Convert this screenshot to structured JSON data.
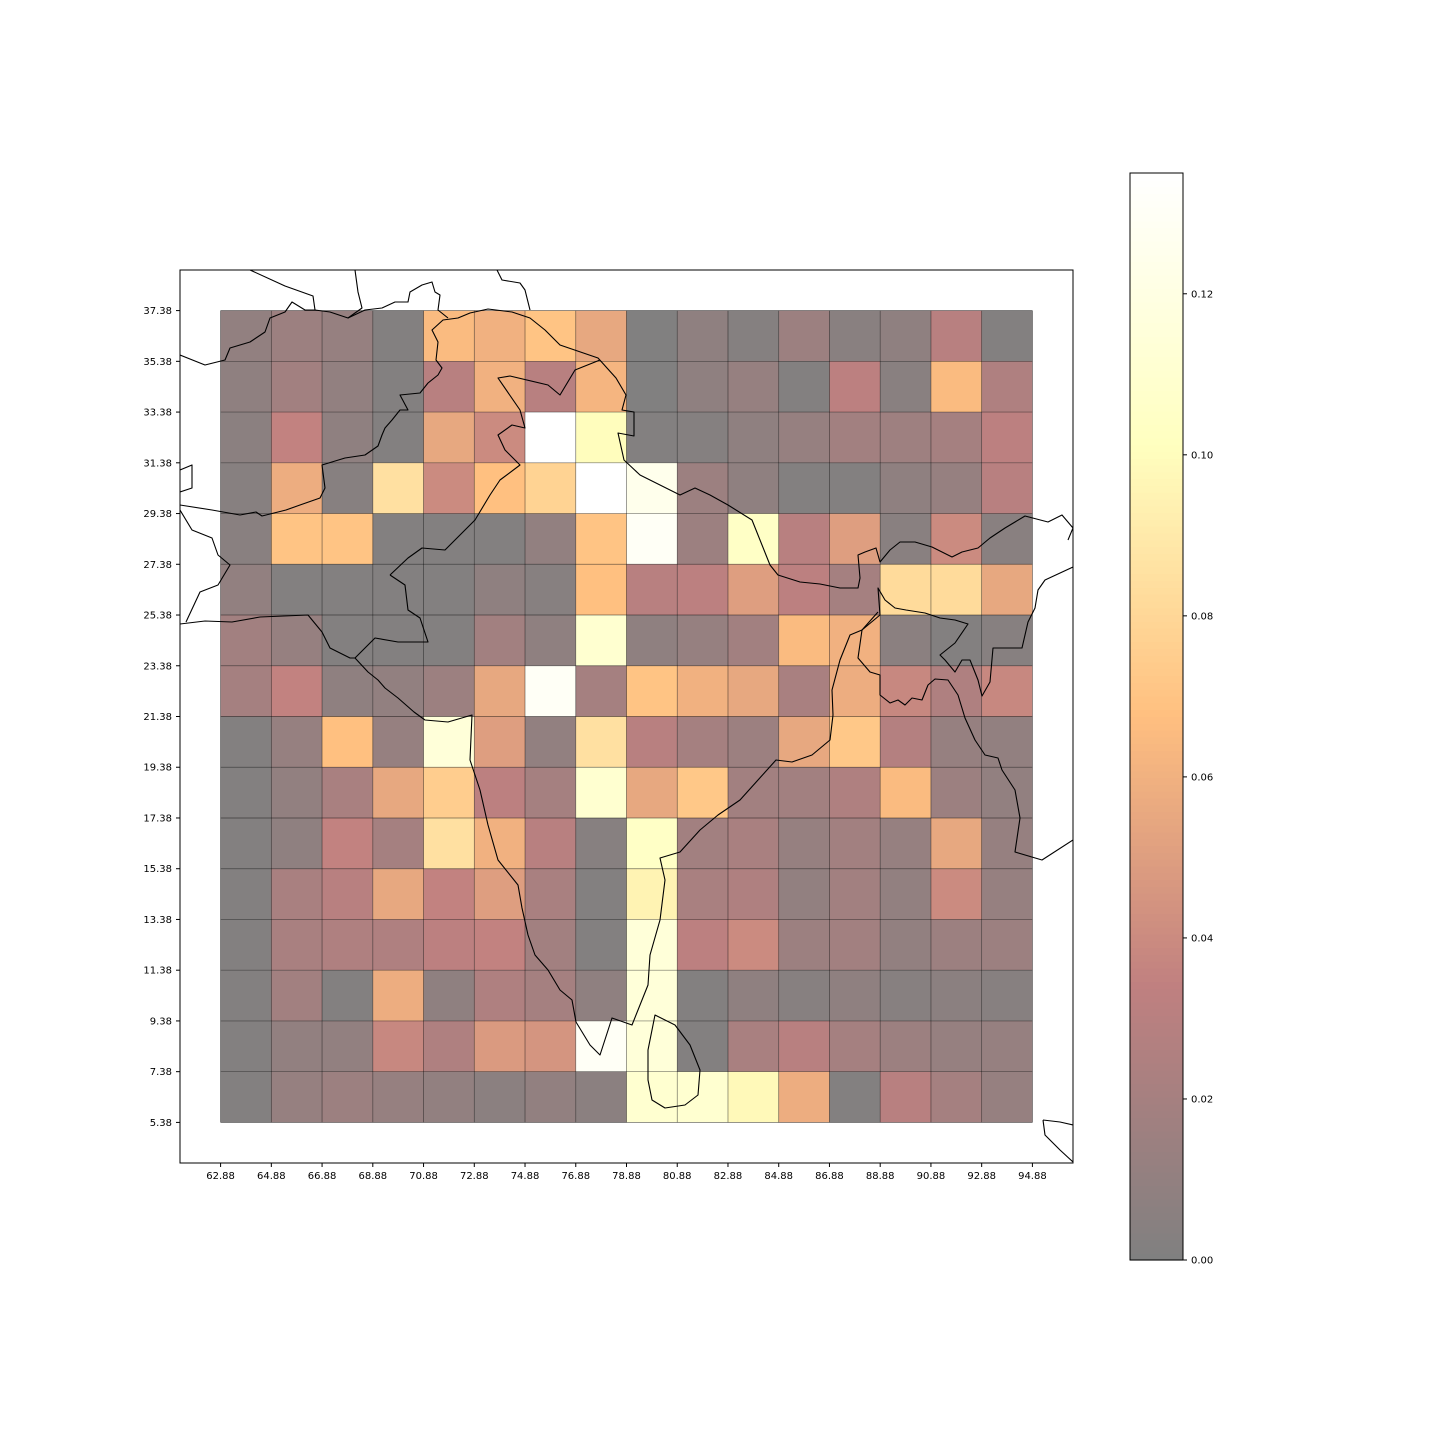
{
  "chart_data": {
    "type": "heatmap",
    "title": "",
    "xlabel": "",
    "ylabel": "",
    "x_ticks": [
      "62.88",
      "64.88",
      "66.88",
      "68.88",
      "70.88",
      "72.88",
      "74.88",
      "76.88",
      "78.88",
      "80.88",
      "82.88",
      "84.88",
      "86.88",
      "88.88",
      "90.88",
      "92.88",
      "94.88"
    ],
    "y_ticks": [
      "37.38",
      "35.38",
      "33.38",
      "31.38",
      "29.38",
      "27.38",
      "25.38",
      "23.38",
      "21.38",
      "19.38",
      "17.38",
      "15.38",
      "13.38",
      "11.38",
      "9.38",
      "7.38",
      "5.38"
    ],
    "xlim": [
      61.28,
      96.48
    ],
    "ylim": [
      3.78,
      38.98
    ],
    "cell_size_deg": 2,
    "grid_origin": {
      "lon": 62.88,
      "lat_top": 37.38
    },
    "colormap": "afmhot",
    "alpha": 0.5,
    "colorbar": {
      "min": 0.0,
      "max": 0.135,
      "ticks": [
        "0.00",
        "0.02",
        "0.04",
        "0.06",
        "0.08",
        "0.10",
        "0.12"
      ],
      "placement": "right"
    },
    "values_rows_north_to_south": [
      [
        0.01,
        0.015,
        0.012,
        0.002,
        0.065,
        0.06,
        0.07,
        0.055,
        0.001,
        0.008,
        0.003,
        0.015,
        0.005,
        0.008,
        0.03,
        0.002
      ],
      [
        0.008,
        0.018,
        0.01,
        0.002,
        0.03,
        0.06,
        0.03,
        0.062,
        0.001,
        0.008,
        0.012,
        0.002,
        0.032,
        0.005,
        0.065,
        0.025
      ],
      [
        0.006,
        0.035,
        0.008,
        0.002,
        0.055,
        0.04,
        0.135,
        0.1,
        0.002,
        0.003,
        0.008,
        0.012,
        0.018,
        0.016,
        0.02,
        0.032
      ],
      [
        0.004,
        0.058,
        0.004,
        0.085,
        0.04,
        0.068,
        0.078,
        0.14,
        0.125,
        0.015,
        0.008,
        0.002,
        0.002,
        0.008,
        0.012,
        0.03
      ],
      [
        0.005,
        0.07,
        0.07,
        0.002,
        0.002,
        0.002,
        0.01,
        0.07,
        0.13,
        0.015,
        0.105,
        0.03,
        0.05,
        0.005,
        0.04,
        0.005
      ],
      [
        0.01,
        0.002,
        0.002,
        0.002,
        0.002,
        0.008,
        0.004,
        0.068,
        0.03,
        0.032,
        0.05,
        0.032,
        0.02,
        0.082,
        0.082,
        0.055
      ],
      [
        0.018,
        0.012,
        0.002,
        0.002,
        0.002,
        0.018,
        0.008,
        0.11,
        0.008,
        0.012,
        0.018,
        0.065,
        0.06,
        0.006,
        0.002,
        0.004
      ],
      [
        0.02,
        0.035,
        0.008,
        0.01,
        0.015,
        0.055,
        0.13,
        0.02,
        0.07,
        0.06,
        0.055,
        0.022,
        0.058,
        0.038,
        0.025,
        0.038
      ],
      [
        0.002,
        0.012,
        0.068,
        0.012,
        0.115,
        0.05,
        0.01,
        0.085,
        0.03,
        0.02,
        0.015,
        0.055,
        0.072,
        0.028,
        0.012,
        0.01
      ],
      [
        0.002,
        0.01,
        0.022,
        0.055,
        0.075,
        0.032,
        0.02,
        0.11,
        0.055,
        0.072,
        0.018,
        0.018,
        0.025,
        0.065,
        0.015,
        0.01
      ],
      [
        0.002,
        0.008,
        0.035,
        0.02,
        0.085,
        0.06,
        0.03,
        0.004,
        0.105,
        0.018,
        0.022,
        0.012,
        0.018,
        0.012,
        0.055,
        0.012
      ],
      [
        0.002,
        0.022,
        0.03,
        0.055,
        0.035,
        0.05,
        0.022,
        0.002,
        0.095,
        0.022,
        0.025,
        0.01,
        0.018,
        0.01,
        0.04,
        0.012
      ],
      [
        0.002,
        0.022,
        0.025,
        0.025,
        0.032,
        0.035,
        0.018,
        0.002,
        0.115,
        0.032,
        0.04,
        0.015,
        0.018,
        0.01,
        0.015,
        0.015
      ],
      [
        0.002,
        0.018,
        0.002,
        0.058,
        0.008,
        0.025,
        0.02,
        0.008,
        0.115,
        0.002,
        0.008,
        0.004,
        0.008,
        0.004,
        0.006,
        0.004
      ],
      [
        0.002,
        0.01,
        0.01,
        0.038,
        0.025,
        0.048,
        0.045,
        0.13,
        0.115,
        0.002,
        0.022,
        0.03,
        0.02,
        0.015,
        0.012,
        0.012
      ],
      [
        0.002,
        0.012,
        0.015,
        0.012,
        0.01,
        0.006,
        0.01,
        0.006,
        0.11,
        0.11,
        0.098,
        0.058,
        0.002,
        0.03,
        0.02,
        0.012
      ]
    ]
  },
  "colors": {
    "background": "#ffffff",
    "grid_line": "#000000",
    "coastline": "#000000"
  }
}
